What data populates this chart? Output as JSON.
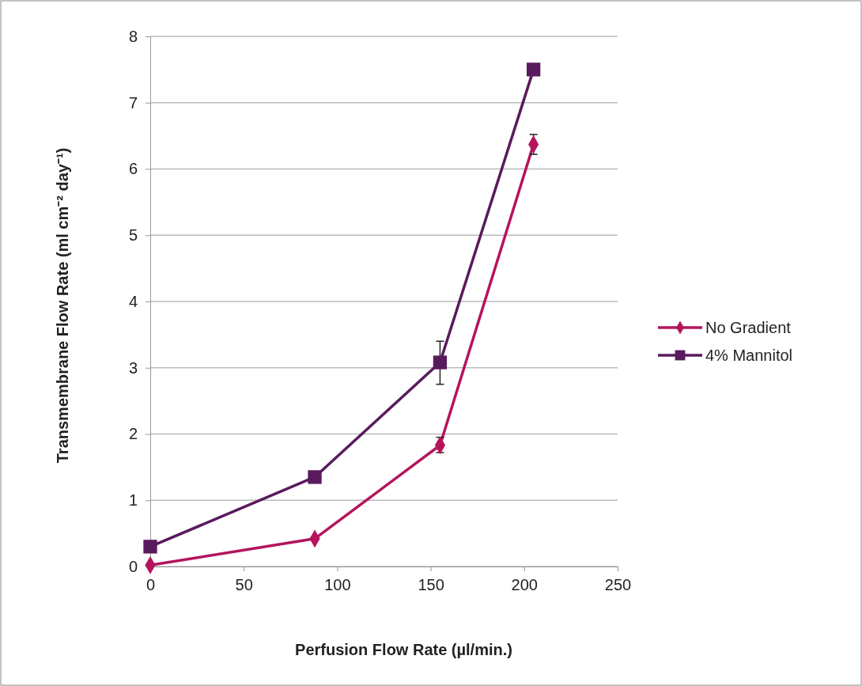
{
  "chart_data": {
    "type": "line",
    "xlabel": "Perfusion Flow Rate (µl/min.)",
    "ylabel": "Transmembrane Flow Rate (ml cm⁻² day⁻¹)",
    "xlim": [
      0,
      250
    ],
    "xticks": [
      0,
      50,
      100,
      150,
      200,
      250
    ],
    "ylim": [
      0,
      8
    ],
    "yticks": [
      0,
      1,
      2,
      3,
      4,
      5,
      6,
      7,
      8
    ],
    "grid": "y",
    "legend": "right",
    "series": [
      {
        "name": "No Gradient",
        "color": "#b5145c",
        "marker": "diamond",
        "x": [
          0,
          88,
          155,
          205
        ],
        "values": [
          0.02,
          0.42,
          1.83,
          6.37
        ],
        "errors": [
          null,
          null,
          [
            1.72,
            1.95
          ],
          [
            6.22,
            6.52
          ]
        ]
      },
      {
        "name": "4% Mannitol",
        "color": "#5a1a5e",
        "marker": "square",
        "x": [
          0,
          88,
          155,
          205
        ],
        "values": [
          0.3,
          1.35,
          3.08,
          7.5
        ],
        "errors": [
          null,
          null,
          [
            2.75,
            3.4
          ],
          null
        ]
      }
    ]
  }
}
